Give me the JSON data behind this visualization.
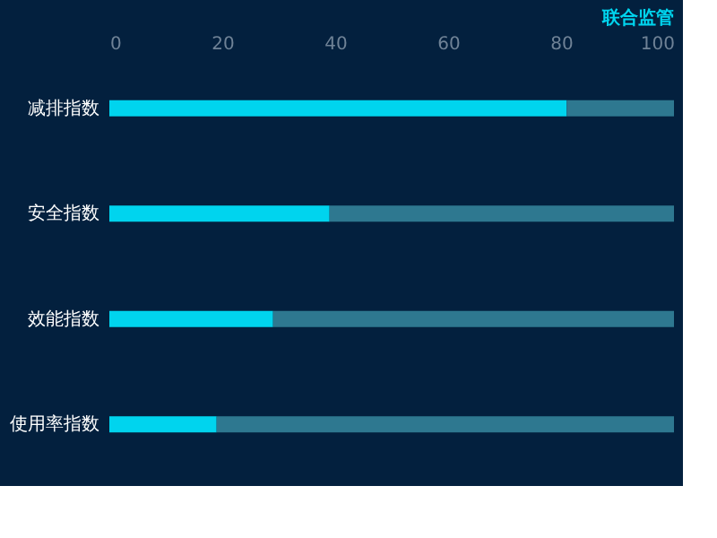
{
  "chart_data": {
    "type": "bar",
    "orientation": "horizontal",
    "stacked": true,
    "title": "联合监管",
    "categories": [
      "减排指数",
      "安全指数",
      "效能指数",
      "使用率指数"
    ],
    "series": [
      {
        "color": "#00d4ee",
        "values": [
          81,
          39,
          29,
          19
        ]
      },
      {
        "color": "#2e7890",
        "values": [
          19,
          61,
          71,
          81
        ]
      }
    ],
    "xlim": [
      0,
      100
    ],
    "xticks": [
      0,
      20,
      40,
      60,
      80,
      100
    ],
    "grid": false
  }
}
